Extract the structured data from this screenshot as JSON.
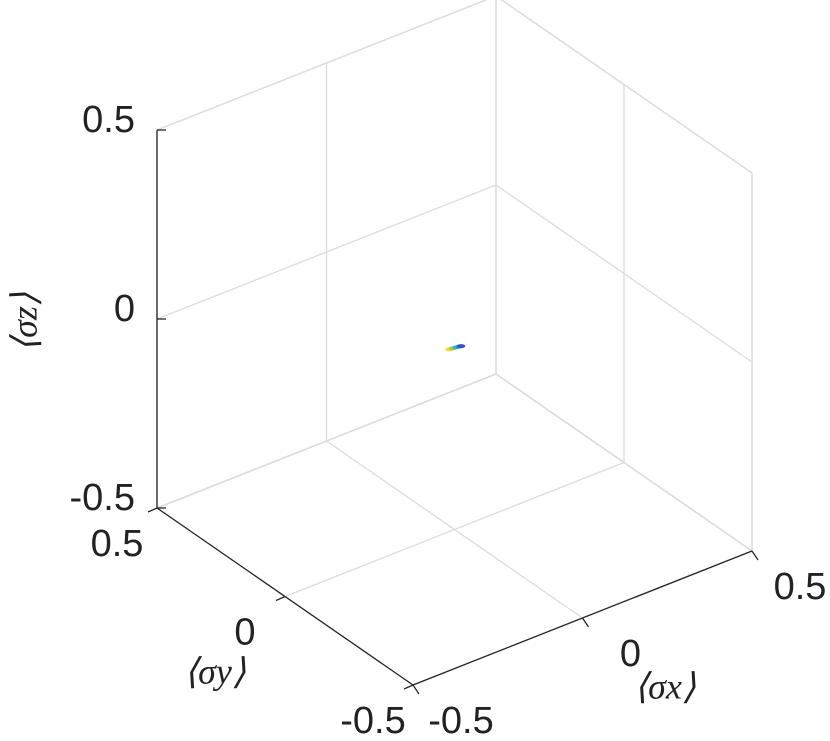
{
  "chart_data": {
    "type": "line3d",
    "xlabel": "⟨σx⟩",
    "ylabel": "⟨σy⟩",
    "zlabel": "⟨σz⟩",
    "xlim": [
      -0.5,
      0.5
    ],
    "ylim": [
      -0.5,
      0.5
    ],
    "zlim": [
      -0.5,
      0.5
    ],
    "xticks": [
      -0.5,
      0,
      0.5
    ],
    "yticks": [
      -0.5,
      0,
      0.5
    ],
    "zticks": [
      -0.5,
      0,
      0.5
    ],
    "grid": true,
    "series": [
      {
        "x": [
          -0.015,
          -0.005,
          0.005,
          0.015,
          0.02
        ],
        "y": [
          0,
          0,
          0,
          0,
          0
        ],
        "z": [
          -0.018,
          -0.019,
          -0.02,
          -0.021,
          -0.022
        ],
        "colors": [
          "#f9d92a",
          "#a8c93a",
          "#3fb0c0",
          "#1e8fe0",
          "#3850d0"
        ]
      }
    ]
  }
}
